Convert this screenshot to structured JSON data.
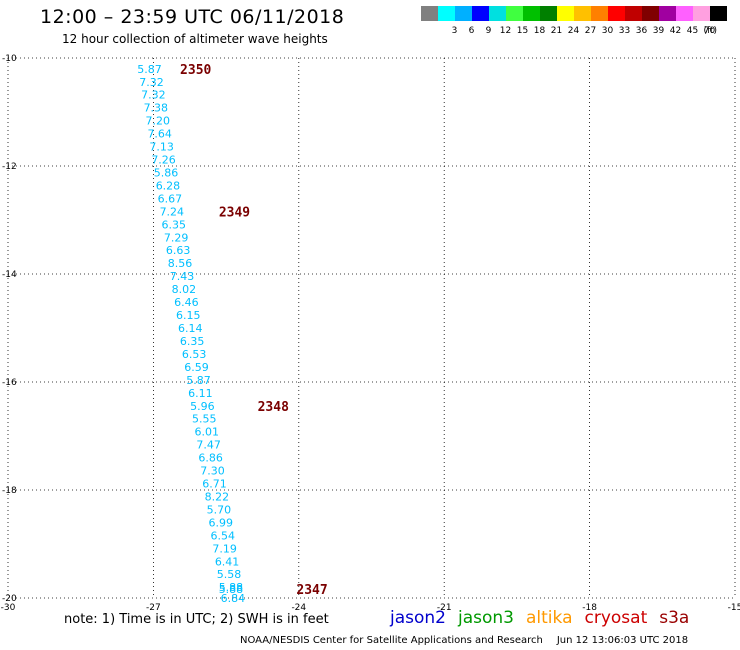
{
  "header": {
    "title": "12:00 – 23:59 UTC 06/11/2018",
    "subtitle": "12 hour collection of altimeter wave heights"
  },
  "colorbar": {
    "unit": "(ft)",
    "bins": [
      {
        "label": "",
        "color": "#808080"
      },
      {
        "label": "3",
        "color": "#00ffff"
      },
      {
        "label": "6",
        "color": "#00b0ff"
      },
      {
        "label": "9",
        "color": "#0000ff"
      },
      {
        "label": "12",
        "color": "#00e0e0"
      },
      {
        "label": "15",
        "color": "#40ff40"
      },
      {
        "label": "18",
        "color": "#00c000"
      },
      {
        "label": "21",
        "color": "#008000"
      },
      {
        "label": "24",
        "color": "#ffff00"
      },
      {
        "label": "27",
        "color": "#ffc000"
      },
      {
        "label": "30",
        "color": "#ff8000"
      },
      {
        "label": "33",
        "color": "#ff0000"
      },
      {
        "label": "36",
        "color": "#c00000"
      },
      {
        "label": "39",
        "color": "#800000"
      },
      {
        "label": "42",
        "color": "#a000a0"
      },
      {
        "label": "45",
        "color": "#ff60ff"
      },
      {
        "label": "70",
        "color": "#ffa0e0"
      },
      {
        "label": "",
        "color": "#000000"
      }
    ]
  },
  "note": "note: 1) Time is in UTC; 2) SWH is in feet",
  "satellites": [
    {
      "name": "jason2",
      "color": "#0000cc"
    },
    {
      "name": "jason3",
      "color": "#009900"
    },
    {
      "name": "altika",
      "color": "#ff9900"
    },
    {
      "name": "cryosat",
      "color": "#cc0000"
    },
    {
      "name": "s3a",
      "color": "#990000"
    }
  ],
  "footer": {
    "credit": "NOAA/NESDIS Center for Satellite Applications and Research",
    "timestamp": "Jun 12 13:06:03 UTC 2018"
  },
  "chart_data": {
    "type": "scatter",
    "xlim": [
      -30,
      -15
    ],
    "ylim": [
      -20,
      -10
    ],
    "x_ticks": [
      -30,
      -27,
      -24,
      -21,
      -18,
      -15
    ],
    "y_ticks": [
      -10,
      -12,
      -14,
      -16,
      -18,
      -20
    ],
    "grid": true,
    "label_color": "#00bfff",
    "time_label_color": "#7a0000",
    "points": [
      {
        "x": -27.08,
        "y": -10.2,
        "v": "5.87"
      },
      {
        "x": -27.04,
        "y": -10.44,
        "v": "7.32"
      },
      {
        "x": -27.0,
        "y": -10.68,
        "v": "7.32"
      },
      {
        "x": -26.95,
        "y": -10.92,
        "v": "7.38"
      },
      {
        "x": -26.91,
        "y": -11.16,
        "v": "7.20"
      },
      {
        "x": -26.87,
        "y": -11.4,
        "v": "7.64"
      },
      {
        "x": -26.83,
        "y": -11.64,
        "v": "7.13"
      },
      {
        "x": -26.79,
        "y": -11.88,
        "v": "7.26"
      },
      {
        "x": -26.74,
        "y": -12.12,
        "v": "5.86"
      },
      {
        "x": -26.7,
        "y": -12.36,
        "v": "6.28"
      },
      {
        "x": -26.66,
        "y": -12.6,
        "v": "6.67"
      },
      {
        "x": -26.62,
        "y": -12.84,
        "v": "7.24"
      },
      {
        "x": -26.58,
        "y": -13.08,
        "v": "6.35"
      },
      {
        "x": -26.53,
        "y": -13.32,
        "v": "7.29"
      },
      {
        "x": -26.49,
        "y": -13.56,
        "v": "6.63"
      },
      {
        "x": -26.45,
        "y": -13.8,
        "v": "8.56"
      },
      {
        "x": -26.41,
        "y": -14.04,
        "v": "7.43"
      },
      {
        "x": -26.37,
        "y": -14.28,
        "v": "8.02"
      },
      {
        "x": -26.32,
        "y": -14.52,
        "v": "6.46"
      },
      {
        "x": -26.28,
        "y": -14.76,
        "v": "6.15"
      },
      {
        "x": -26.24,
        "y": -15.0,
        "v": "6.14"
      },
      {
        "x": -26.2,
        "y": -15.24,
        "v": "6.35"
      },
      {
        "x": -26.16,
        "y": -15.48,
        "v": "6.53"
      },
      {
        "x": -26.11,
        "y": -15.72,
        "v": "6.59"
      },
      {
        "x": -26.07,
        "y": -15.96,
        "v": "5.87"
      },
      {
        "x": -26.03,
        "y": -16.2,
        "v": "6.11"
      },
      {
        "x": -25.99,
        "y": -16.44,
        "v": "5.96"
      },
      {
        "x": -25.95,
        "y": -16.68,
        "v": "5.55"
      },
      {
        "x": -25.9,
        "y": -16.92,
        "v": "6.01"
      },
      {
        "x": -25.86,
        "y": -17.16,
        "v": "7.47"
      },
      {
        "x": -25.82,
        "y": -17.4,
        "v": "6.86"
      },
      {
        "x": -25.78,
        "y": -17.64,
        "v": "7.30"
      },
      {
        "x": -25.74,
        "y": -17.88,
        "v": "6.71"
      },
      {
        "x": -25.69,
        "y": -18.12,
        "v": "8.22"
      },
      {
        "x": -25.65,
        "y": -18.36,
        "v": "5.70"
      },
      {
        "x": -25.61,
        "y": -18.6,
        "v": "6.99"
      },
      {
        "x": -25.57,
        "y": -18.84,
        "v": "6.54"
      },
      {
        "x": -25.53,
        "y": -19.08,
        "v": "7.19"
      },
      {
        "x": -25.48,
        "y": -19.32,
        "v": "6.41"
      },
      {
        "x": -25.44,
        "y": -19.56,
        "v": "5.58"
      },
      {
        "x": -25.4,
        "y": -19.8,
        "v": "5.88"
      },
      {
        "x": -25.4,
        "y": -19.83,
        "v": "5.88"
      },
      {
        "x": -25.36,
        "y": -20.0,
        "v": "6.84"
      }
    ],
    "time_labels": [
      {
        "x": -26.45,
        "y": -10.2,
        "v": "2350"
      },
      {
        "x": -25.65,
        "y": -12.84,
        "v": "2349"
      },
      {
        "x": -24.85,
        "y": -16.44,
        "v": "2348"
      },
      {
        "x": -24.05,
        "y": -19.83,
        "v": "2347"
      }
    ]
  }
}
